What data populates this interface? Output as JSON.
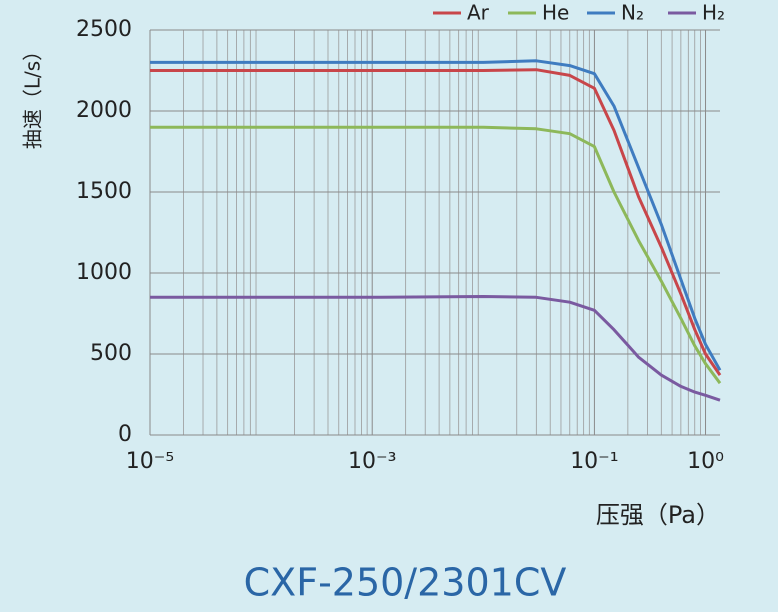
{
  "chart_data": {
    "type": "line",
    "title": "CXF-250/2301CV",
    "x_label": "压强（Pa）",
    "y_label": "抽速（L/s）",
    "log_x": true,
    "grid": true,
    "minor_grid": true,
    "legend": "top-right",
    "x": [
      1e-05,
      0.0001,
      0.001,
      0.01,
      0.03,
      0.06,
      0.1,
      0.15,
      0.25,
      0.4,
      0.6,
      0.8,
      1,
      1.35
    ],
    "series": [
      {
        "name": "Ar",
        "color": "#c8464a",
        "values": [
          2250,
          2250,
          2250,
          2250,
          2255,
          2220,
          2140,
          1880,
          1470,
          1160,
          870,
          650,
          500,
          370
        ]
      },
      {
        "name": "He",
        "color": "#8db85a",
        "values": [
          1900,
          1900,
          1900,
          1900,
          1890,
          1860,
          1780,
          1500,
          1200,
          950,
          720,
          550,
          440,
          320
        ]
      },
      {
        "name": "N₂",
        "color": "#3f7cc0",
        "values": [
          2300,
          2300,
          2300,
          2300,
          2310,
          2280,
          2230,
          2030,
          1650,
          1300,
          960,
          720,
          560,
          400
        ]
      },
      {
        "name": "H₂",
        "color": "#7a5aa0",
        "values": [
          850,
          850,
          850,
          855,
          850,
          820,
          770,
          650,
          480,
          370,
          300,
          265,
          245,
          215
        ]
      }
    ],
    "xlim": [
      1e-05,
      1.35
    ],
    "xticks": [
      {
        "value": 1e-05,
        "label": "10⁻⁵"
      },
      {
        "value": 0.001,
        "label": "10⁻³"
      },
      {
        "value": 0.1,
        "label": "10⁻¹"
      },
      {
        "value": 1,
        "label": "10⁰"
      }
    ],
    "ylim": [
      0,
      2500
    ],
    "yticks": [
      0,
      500,
      1000,
      1500,
      2000,
      2500
    ]
  }
}
